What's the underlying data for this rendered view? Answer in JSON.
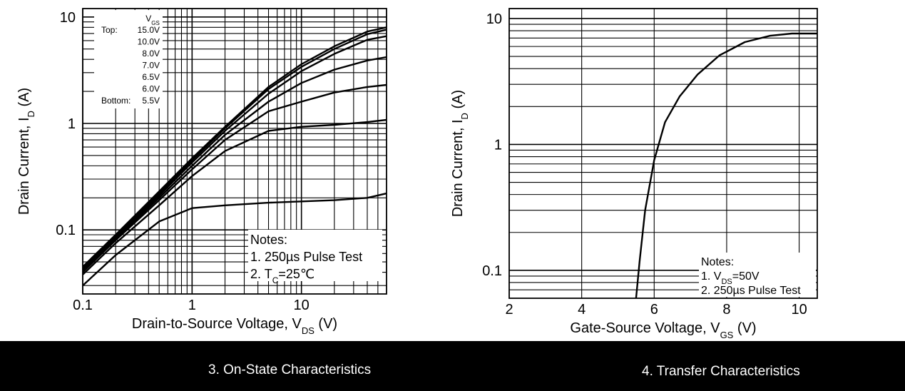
{
  "chart_data": [
    {
      "type": "line",
      "caption": "3. On-State Characteristics",
      "xlabel": "Drain-to-Source Voltage, V",
      "xlabel_sub": "DS",
      "xlabel_unit": " (V)",
      "ylabel": "Drain Current, I",
      "ylabel_sub": "D",
      "ylabel_unit": " (A)",
      "x_scale": "log",
      "y_scale": "log",
      "xlim": [
        0.1,
        60
      ],
      "ylim": [
        0.025,
        12
      ],
      "x_ticks": [
        {
          "v": 0.1,
          "label": "0.1"
        },
        {
          "v": 1,
          "label": "1"
        },
        {
          "v": 10,
          "label": "10"
        }
      ],
      "y_ticks": [
        {
          "v": 0.1,
          "label": "0.1"
        },
        {
          "v": 1,
          "label": "1"
        },
        {
          "v": 10,
          "label": "10"
        }
      ],
      "grid": true,
      "legend_title": "V",
      "legend_title_sub": "GS",
      "legend_entries": [
        {
          "prefix": "Top:",
          "label": "15.0V"
        },
        {
          "prefix": "",
          "label": "10.0V"
        },
        {
          "prefix": "",
          "label": "8.0V"
        },
        {
          "prefix": "",
          "label": "7.0V"
        },
        {
          "prefix": "",
          "label": "6.5V"
        },
        {
          "prefix": "",
          "label": "6.0V"
        },
        {
          "prefix": "Bottom:",
          "label": "5.5V"
        }
      ],
      "notes_title": "Notes:",
      "notes": [
        {
          "text": "1. 250µs Pulse Test",
          "sub": "",
          "after": ""
        },
        {
          "text": "2. T",
          "sub": "C",
          "after": "=25℃"
        }
      ],
      "series": [
        {
          "name": "15.0V",
          "x": [
            0.1,
            0.2,
            0.5,
            1,
            2,
            5,
            10,
            20,
            40,
            60
          ],
          "y": [
            0.045,
            0.09,
            0.23,
            0.47,
            0.93,
            2.2,
            3.6,
            5.3,
            7.3,
            8.0
          ]
        },
        {
          "name": "10.0V",
          "x": [
            0.1,
            0.2,
            0.5,
            1,
            2,
            5,
            10,
            20,
            40,
            60
          ],
          "y": [
            0.044,
            0.088,
            0.22,
            0.45,
            0.9,
            2.1,
            3.4,
            5.0,
            6.9,
            7.6
          ]
        },
        {
          "name": "8.0V",
          "x": [
            0.1,
            0.2,
            0.5,
            1,
            2,
            5,
            10,
            20,
            40,
            60
          ],
          "y": [
            0.043,
            0.086,
            0.21,
            0.43,
            0.85,
            1.9,
            3.1,
            4.5,
            6.1,
            6.6
          ]
        },
        {
          "name": "7.0V",
          "x": [
            0.1,
            0.2,
            0.5,
            1,
            2,
            5,
            10,
            20,
            40,
            60
          ],
          "y": [
            0.042,
            0.083,
            0.2,
            0.4,
            0.78,
            1.6,
            2.4,
            3.2,
            3.9,
            4.2
          ]
        },
        {
          "name": "6.5V",
          "x": [
            0.1,
            0.2,
            0.5,
            1,
            2,
            5,
            10,
            20,
            40,
            60
          ],
          "y": [
            0.04,
            0.08,
            0.19,
            0.37,
            0.7,
            1.3,
            1.6,
            1.95,
            2.2,
            2.3
          ]
        },
        {
          "name": "6.0V",
          "x": [
            0.1,
            0.2,
            0.5,
            1,
            2,
            5,
            10,
            20,
            40,
            60
          ],
          "y": [
            0.038,
            0.075,
            0.17,
            0.32,
            0.55,
            0.85,
            0.93,
            0.97,
            1.03,
            1.08
          ]
        },
        {
          "name": "5.5V",
          "x": [
            0.1,
            0.2,
            0.5,
            1,
            2,
            5,
            10,
            20,
            40,
            60
          ],
          "y": [
            0.03,
            0.058,
            0.12,
            0.16,
            0.17,
            0.18,
            0.185,
            0.19,
            0.2,
            0.22
          ]
        }
      ]
    },
    {
      "type": "line",
      "caption": "4. Transfer Characteristics",
      "xlabel": "Gate-Source Voltage, V",
      "xlabel_sub": "GS",
      "xlabel_unit": " (V)",
      "ylabel": "Drain Current, I",
      "ylabel_sub": "D",
      "ylabel_unit": " (A)",
      "x_scale": "linear",
      "y_scale": "log",
      "xlim": [
        2,
        10.5
      ],
      "ylim": [
        0.06,
        12
      ],
      "x_ticks": [
        {
          "v": 2,
          "label": "2"
        },
        {
          "v": 4,
          "label": "4"
        },
        {
          "v": 6,
          "label": "6"
        },
        {
          "v": 8,
          "label": "8"
        },
        {
          "v": 10,
          "label": "10"
        }
      ],
      "y_ticks": [
        {
          "v": 0.1,
          "label": "0.1"
        },
        {
          "v": 1,
          "label": "1"
        },
        {
          "v": 10,
          "label": "10"
        }
      ],
      "grid": true,
      "notes_title": "Notes:",
      "notes": [
        {
          "text": "1. V",
          "sub": "DS",
          "after": "=50V"
        },
        {
          "text": "2. 250µs Pulse Test",
          "sub": "",
          "after": ""
        }
      ],
      "series": [
        {
          "x": [
            5.5,
            5.6,
            5.75,
            6.0,
            6.3,
            6.7,
            7.2,
            7.8,
            8.5,
            9.2,
            9.8,
            10.5
          ],
          "y": [
            0.06,
            0.12,
            0.3,
            0.75,
            1.5,
            2.4,
            3.6,
            5.1,
            6.5,
            7.3,
            7.6,
            7.6
          ]
        }
      ]
    }
  ]
}
